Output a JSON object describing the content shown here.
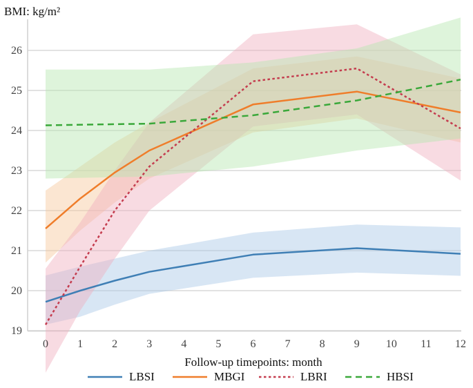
{
  "chart_data": {
    "type": "line",
    "title": "",
    "ylabel": "BMI: kg/m²",
    "xlabel": "Follow-up timepoints: month",
    "x": [
      0,
      3,
      6,
      9,
      12
    ],
    "x_ticks": [
      "0",
      "1",
      "2",
      "3",
      "4",
      "5",
      "6",
      "7",
      "8",
      "9",
      "10",
      "11",
      "12"
    ],
    "xlim": [
      0,
      12
    ],
    "y_ticks": [
      "19",
      "20",
      "21",
      "22",
      "23",
      "24",
      "25",
      "26"
    ],
    "ylim": [
      19,
      26.8
    ],
    "grid": "horizontal",
    "legend_position": "bottom",
    "series": [
      {
        "name": "LBSI",
        "color": "#3f7fb5",
        "dash": "solid",
        "x": [
          0,
          1,
          2,
          3,
          6,
          9,
          12
        ],
        "values": [
          19.72,
          20.0,
          20.25,
          20.47,
          20.9,
          21.06,
          20.92
        ],
        "lower": [
          19.15,
          19.35,
          19.65,
          19.92,
          20.32,
          20.45,
          20.37
        ],
        "upper": [
          20.38,
          20.6,
          20.8,
          21.0,
          21.45,
          21.65,
          21.58
        ],
        "band_color": "#a9c8e6"
      },
      {
        "name": "MBGI",
        "color": "#ef7d2a",
        "dash": "solid",
        "x": [
          0,
          1,
          2,
          3,
          6,
          9,
          12
        ],
        "values": [
          21.55,
          22.3,
          22.95,
          23.5,
          24.65,
          24.97,
          24.45
        ],
        "lower": [
          20.7,
          21.5,
          22.2,
          22.8,
          23.95,
          24.3,
          23.7
        ],
        "upper": [
          22.5,
          23.1,
          23.7,
          24.2,
          25.55,
          25.85,
          25.3
        ],
        "band_color": "#f7c79c"
      },
      {
        "name": "LBRI",
        "color": "#c43c4e",
        "dash": "dotted",
        "x": [
          0,
          1,
          2,
          3,
          6,
          9,
          12
        ],
        "values": [
          19.15,
          20.6,
          22.0,
          23.1,
          25.23,
          25.55,
          24.05
        ],
        "lower": [
          17.95,
          19.5,
          20.8,
          22.0,
          24.1,
          24.4,
          22.75
        ],
        "upper": [
          20.55,
          21.7,
          23.0,
          24.2,
          26.4,
          26.65,
          25.4
        ],
        "band_color": "#efb0bf"
      },
      {
        "name": "HBSI",
        "color": "#3aa83a",
        "dash": "dashed",
        "x": [
          0,
          3,
          6,
          9,
          12
        ],
        "values": [
          24.13,
          24.17,
          24.38,
          24.75,
          25.27
        ],
        "lower": [
          22.8,
          22.85,
          23.1,
          23.5,
          23.8
        ],
        "upper": [
          25.52,
          25.52,
          25.7,
          26.05,
          26.82
        ],
        "band_color": "#b5e6b0"
      }
    ]
  }
}
